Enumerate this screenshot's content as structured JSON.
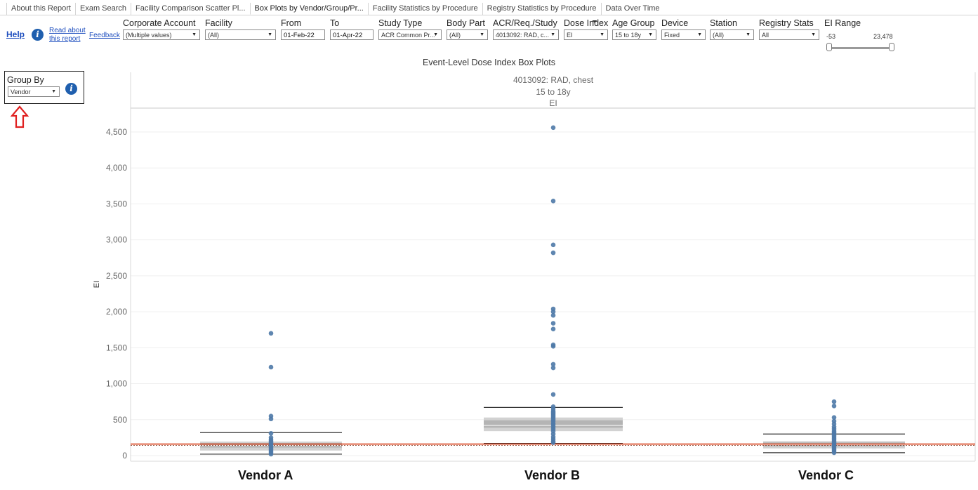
{
  "tabs": [
    {
      "label": "About this Report",
      "active": false
    },
    {
      "label": "Exam Search",
      "active": false
    },
    {
      "label": "Facility Comparison Scatter Pl...",
      "active": false
    },
    {
      "label": "Box Plots by Vendor/Group/Pr...",
      "active": true
    },
    {
      "label": "Facility Statistics by Procedure",
      "active": false
    },
    {
      "label": "Registry Statistics by Procedure",
      "active": false
    },
    {
      "label": "Data Over Time",
      "active": false
    }
  ],
  "toolbar": {
    "help_label": "Help",
    "read_about_line1": "Read about",
    "read_about_line2": "this report",
    "feedback_label": "Feedback",
    "info_glyph": "i"
  },
  "filters": {
    "corporate_account": {
      "label": "Corporate Account",
      "value": "(Multiple values)"
    },
    "facility": {
      "label": "Facility",
      "value": "(All)"
    },
    "from": {
      "label": "From",
      "value": "01-Feb-22"
    },
    "to": {
      "label": "To",
      "value": "01-Apr-22"
    },
    "study_type": {
      "label": "Study Type",
      "value": "ACR Common Pr..."
    },
    "body_part": {
      "label": "Body Part",
      "value": "(All)"
    },
    "acr_study": {
      "label": "ACR/Req./Study",
      "value": "4013092: RAD, c..."
    },
    "dose_index": {
      "label": "Dose Index",
      "value": "EI"
    },
    "age_group": {
      "label": "Age Group",
      "value": "15 to 18y"
    },
    "device": {
      "label": "Device",
      "value": "Fixed"
    },
    "station": {
      "label": "Station",
      "value": "(All)"
    },
    "registry_stats": {
      "label": "Registry Stats",
      "value": "All"
    },
    "ei_range": {
      "label": "EI Range",
      "min": "-53",
      "max": "23,478"
    }
  },
  "group_by": {
    "label": "Group By",
    "value": "Vendor"
  },
  "chart_data": {
    "type": "box",
    "title": "Event-Level Dose Index Box Plots",
    "header_lines": [
      "4013092: RAD, chest",
      "15 to 18y",
      "EI"
    ],
    "ylabel": "EI",
    "ylim": [
      -80,
      4800
    ],
    "yticks": [
      0,
      500,
      1000,
      1500,
      2000,
      2500,
      3000,
      3500,
      4000,
      4500
    ],
    "ytick_labels": [
      "0",
      "500",
      "1,000",
      "1,500",
      "2,000",
      "2,500",
      "3,000",
      "3,500",
      "4,000",
      "4,500"
    ],
    "reference_line": 160,
    "categories": [
      "Vendor A",
      "Vendor B",
      "Vendor C"
    ],
    "boxes": [
      {
        "name": "Vendor A",
        "whisker_low": 20,
        "q1": 70,
        "median": 140,
        "q3": 195,
        "whisker_high": 320,
        "outliers": [
          1700,
          1230,
          550,
          510,
          310,
          250,
          220,
          200,
          180,
          160,
          140,
          120,
          100,
          80,
          60,
          40,
          20
        ]
      },
      {
        "name": "Vendor B",
        "whisker_low": 170,
        "q1": 340,
        "median": 420,
        "q3": 530,
        "whisker_high": 670,
        "outliers": [
          4560,
          3540,
          2930,
          2820,
          2040,
          2000,
          1950,
          1840,
          1760,
          1540,
          1520,
          1270,
          1220,
          850,
          680,
          650,
          620,
          600,
          580,
          560,
          540,
          520,
          500,
          480,
          450,
          430,
          400,
          370,
          340,
          300,
          260,
          230,
          200,
          180
        ]
      },
      {
        "name": "Vendor C",
        "whisker_low": 40,
        "q1": 100,
        "median": 150,
        "q3": 200,
        "whisker_high": 300,
        "outliers": [
          750,
          690,
          530,
          480,
          440,
          400,
          370,
          340,
          320,
          300,
          280,
          260,
          240,
          220,
          200,
          180,
          160,
          140,
          120,
          100,
          80,
          60,
          40
        ]
      }
    ]
  },
  "colors": {
    "accent": "#1f5fae",
    "point": "#4e79a7",
    "reference_line": "#d9431e",
    "arrow": "#e02020",
    "box_outer": "#d2d2d2",
    "box_inner": "#b4b4b4"
  }
}
